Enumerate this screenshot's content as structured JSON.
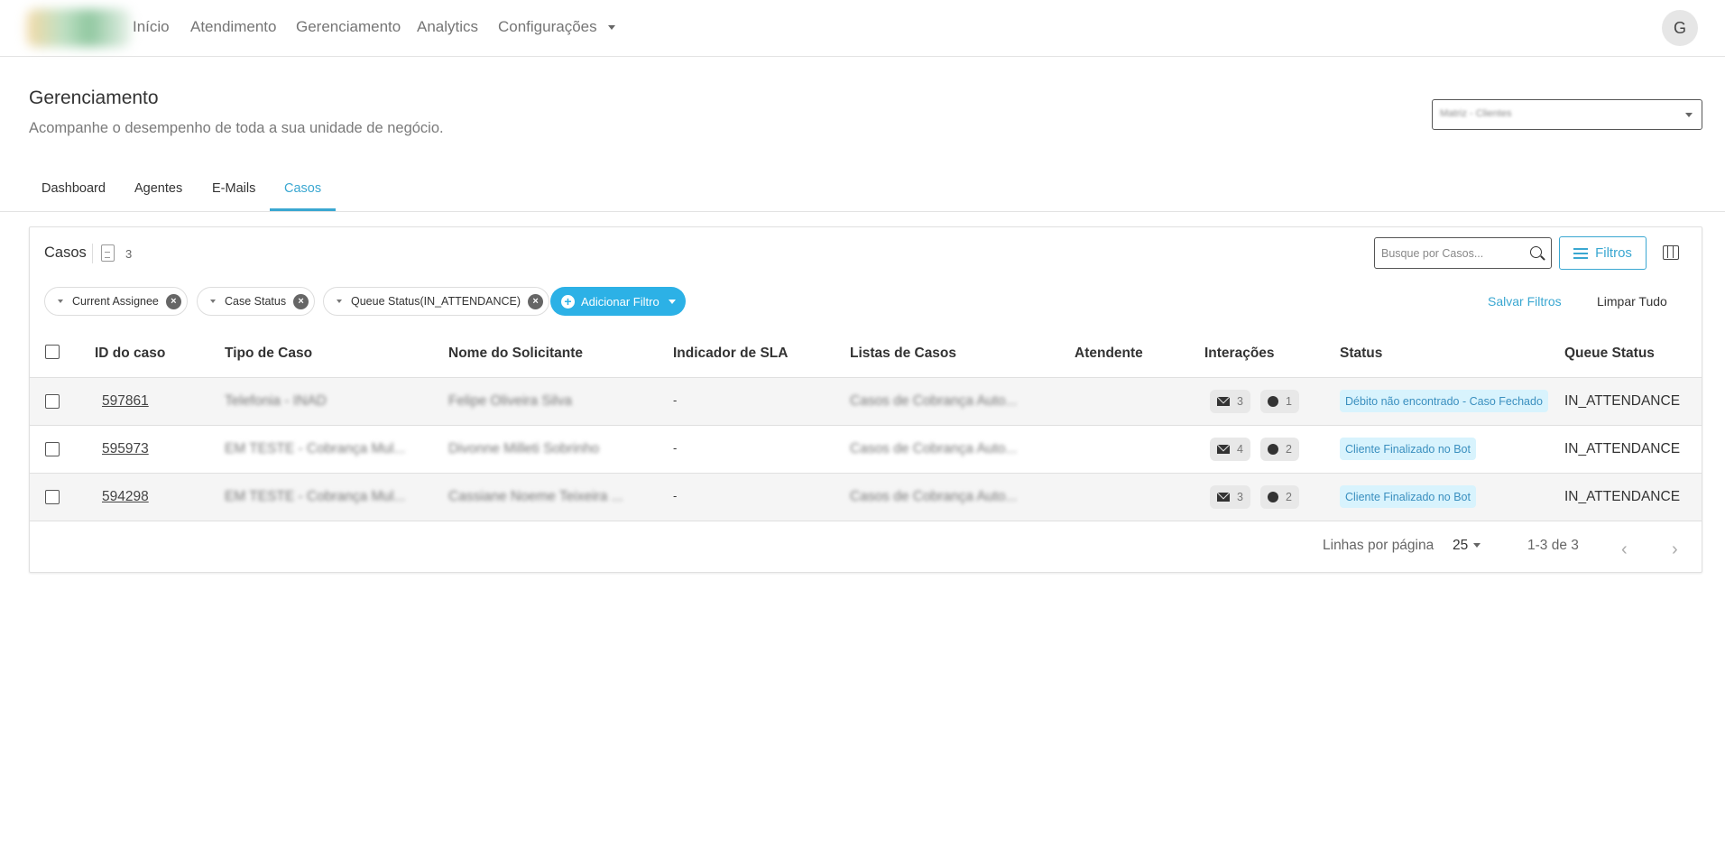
{
  "nav": {
    "items": [
      "Início",
      "Atendimento",
      "Gerenciamento",
      "Analytics",
      "Configurações"
    ],
    "avatar": "G"
  },
  "page": {
    "title": "Gerenciamento",
    "subtitle": "Acompanhe o desempenho de toda a sua unidade de negócio.",
    "unit_select": "Matriz - Clientes"
  },
  "tabs": [
    "Dashboard",
    "Agentes",
    "E-Mails",
    "Casos"
  ],
  "active_tab": "Casos",
  "card": {
    "title": "Casos",
    "count": "3",
    "search_placeholder": "Busque por Casos...",
    "filters_label": "Filtros",
    "save_filters": "Salvar Filtros",
    "clear_all": "Limpar Tudo",
    "add_filter": "Adicionar Filtro"
  },
  "chips": [
    "Current Assignee",
    "Case Status",
    "Queue Status(IN_ATTENDANCE)"
  ],
  "columns": [
    "ID do caso",
    "Tipo de Caso",
    "Nome do Solicitante",
    "Indicador de SLA",
    "Listas de Casos",
    "Atendente",
    "Interações",
    "Status",
    "Queue Status"
  ],
  "rows": [
    {
      "id": "597861",
      "tipo": "Telefonia - INAD",
      "nome": "Felipe Oliveira Silva",
      "sla": "-",
      "lista": "Casos de Cobrança Auto...",
      "atendente": "",
      "emails": "3",
      "whatsapp": "1",
      "status": "Débito não encontrado - Caso Fechado",
      "queue": "IN_ATTENDANCE"
    },
    {
      "id": "595973",
      "tipo": "EM TESTE - Cobrança Mul...",
      "nome": "Divonne Milleti Sobrinho",
      "sla": "-",
      "lista": "Casos de Cobrança Auto...",
      "atendente": "",
      "emails": "4",
      "whatsapp": "2",
      "status": "Cliente Finalizado no Bot",
      "queue": "IN_ATTENDANCE"
    },
    {
      "id": "594298",
      "tipo": "EM TESTE - Cobrança Mul...",
      "nome": "Cassiane Noeme Teixeira ...",
      "sla": "-",
      "lista": "Casos de Cobrança Auto...",
      "atendente": "",
      "emails": "3",
      "whatsapp": "2",
      "status": "Cliente Finalizado no Bot",
      "queue": "IN_ATTENDANCE"
    }
  ],
  "pagination": {
    "rows_label": "Linhas por página",
    "rows_per_page": "25",
    "range": "1-3 de 3"
  },
  "colors": {
    "accent": "#3aa7d1",
    "button": "#2cb1e6",
    "status_bg": "#d8f3fd"
  }
}
